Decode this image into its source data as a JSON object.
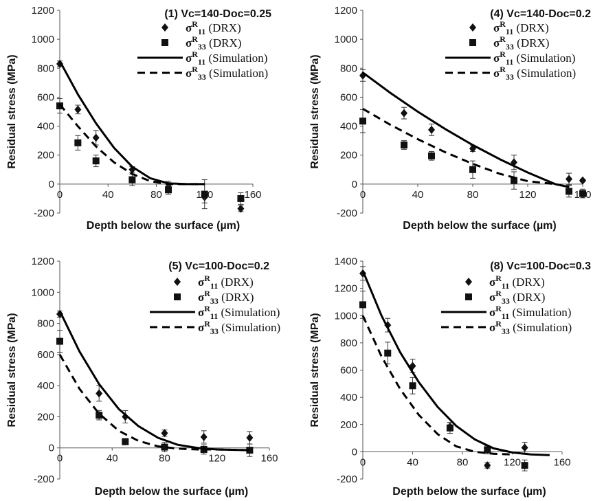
{
  "xlabel": "Depth below the surface (µm)",
  "ylabel": "Residual stress (MPa)",
  "legend": [
    {
      "sym": "σ",
      "sup": "R",
      "sub": "11",
      "rest": " (DRX)",
      "kind": "diamond"
    },
    {
      "sym": "σ",
      "sup": "R",
      "sub": "33",
      "rest": " (DRX)",
      "kind": "square"
    },
    {
      "sym": "σ",
      "sup": "R",
      "sub": "11",
      "rest": " (Simulation)",
      "kind": "solid"
    },
    {
      "sym": "σ",
      "sup": "R",
      "sub": "33",
      "rest": " (Simulation)",
      "kind": "dashed"
    }
  ],
  "chart_data": [
    {
      "type": "scatter",
      "title": "(1) Vc=140-Doc=0.25",
      "xlim": [
        0,
        160
      ],
      "xticks": [
        0,
        40,
        80,
        120,
        160
      ],
      "ylim": [
        -200,
        1200
      ],
      "yticks": [
        -200,
        0,
        200,
        400,
        600,
        800,
        1000,
        1200
      ],
      "series": [
        {
          "name": "σR11 (DRX)",
          "marker": "diamond",
          "x": [
            0,
            15,
            30,
            60,
            90,
            120,
            150
          ],
          "y": [
            830,
            515,
            320,
            100,
            -20,
            -90,
            -170
          ],
          "err": [
            20,
            30,
            50,
            20,
            40,
            40,
            20
          ]
        },
        {
          "name": "σR33 (DRX)",
          "marker": "square",
          "x": [
            0,
            15,
            30,
            60,
            90,
            120,
            150
          ],
          "y": [
            540,
            285,
            160,
            30,
            -40,
            -70,
            -100
          ],
          "err": [
            50,
            50,
            40,
            40,
            30,
            100,
            40
          ]
        },
        {
          "name": "σR11 (Simulation)",
          "style": "solid",
          "x": [
            0,
            15,
            30,
            45,
            60,
            75,
            90,
            105,
            120
          ],
          "y": [
            850,
            620,
            420,
            250,
            120,
            40,
            5,
            0,
            0
          ]
        },
        {
          "name": "σR33 (Simulation)",
          "style": "dashed",
          "x": [
            0,
            15,
            30,
            45,
            60,
            75,
            90,
            105,
            120
          ],
          "y": [
            550,
            400,
            260,
            150,
            70,
            20,
            0,
            0,
            0
          ]
        }
      ]
    },
    {
      "type": "scatter",
      "title": "(4) Vc=140-Doc=0.2",
      "xlim": [
        0,
        160
      ],
      "xticks": [
        0,
        40,
        80,
        120,
        160
      ],
      "ylim": [
        -200,
        1200
      ],
      "yticks": [
        -200,
        0,
        200,
        400,
        600,
        800,
        1000,
        1200
      ],
      "series": [
        {
          "name": "σR11 (DRX)",
          "marker": "diamond",
          "x": [
            0,
            30,
            50,
            80,
            110,
            150,
            160
          ],
          "y": [
            750,
            490,
            375,
            245,
            150,
            35,
            25
          ],
          "err": [
            40,
            40,
            40,
            20,
            50,
            40,
            10
          ]
        },
        {
          "name": "σR33 (DRX)",
          "marker": "square",
          "x": [
            0,
            30,
            50,
            80,
            110,
            150,
            160
          ],
          "y": [
            435,
            270,
            195,
            100,
            25,
            -50,
            -65
          ],
          "err": [
            80,
            30,
            30,
            60,
            60,
            40,
            30
          ]
        },
        {
          "name": "σR11 (Simulation)",
          "style": "solid",
          "x": [
            0,
            20,
            40,
            60,
            80,
            100,
            120,
            140,
            150
          ],
          "y": [
            770,
            630,
            500,
            380,
            270,
            170,
            80,
            0,
            -20
          ]
        },
        {
          "name": "σR33 (Simulation)",
          "style": "dashed",
          "x": [
            0,
            20,
            40,
            60,
            80,
            100,
            120,
            140
          ],
          "y": [
            520,
            410,
            310,
            220,
            140,
            70,
            20,
            0
          ]
        }
      ]
    },
    {
      "type": "scatter",
      "title": "(5) Vc=100-Doc=0.2",
      "xlim": [
        0,
        160
      ],
      "xticks": [
        0,
        40,
        80,
        120,
        160
      ],
      "ylim": [
        -200,
        1200
      ],
      "yticks": [
        -200,
        0,
        200,
        400,
        600,
        800,
        1000,
        1200
      ],
      "series": [
        {
          "name": "σR11 (DRX)",
          "marker": "diamond",
          "x": [
            0,
            30,
            50,
            80,
            110,
            145
          ],
          "y": [
            860,
            350,
            200,
            95,
            70,
            65
          ],
          "err": [
            20,
            50,
            40,
            20,
            40,
            40
          ]
        },
        {
          "name": "σR33 (DRX)",
          "marker": "square",
          "x": [
            0,
            30,
            50,
            80,
            110,
            145
          ],
          "y": [
            685,
            210,
            40,
            5,
            -10,
            -15
          ],
          "err": [
            70,
            30,
            20,
            30,
            30,
            40
          ]
        },
        {
          "name": "σR11 (Simulation)",
          "style": "solid",
          "x": [
            0,
            15,
            30,
            45,
            60,
            75,
            90,
            105,
            120,
            145
          ],
          "y": [
            880,
            620,
            410,
            250,
            140,
            65,
            20,
            0,
            -10,
            -15
          ]
        },
        {
          "name": "σR33 (Simulation)",
          "style": "dashed",
          "x": [
            0,
            15,
            30,
            45,
            60,
            75,
            90,
            105,
            120,
            145
          ],
          "y": [
            600,
            380,
            220,
            110,
            45,
            10,
            -5,
            -10,
            -10,
            -15
          ]
        }
      ]
    },
    {
      "type": "scatter",
      "title": "(8) Vc=100-Doc=0.3",
      "xlim": [
        0,
        160
      ],
      "xticks": [
        0,
        40,
        80,
        120,
        160
      ],
      "ylim": [
        -200,
        1400
      ],
      "yticks": [
        -200,
        0,
        200,
        400,
        600,
        800,
        1000,
        1200,
        1400
      ],
      "series": [
        {
          "name": "σR11 (DRX)",
          "marker": "diamond",
          "x": [
            0,
            20,
            40,
            70,
            100,
            130
          ],
          "y": [
            1310,
            930,
            630,
            185,
            -100,
            30
          ],
          "err": [
            50,
            50,
            50,
            30,
            20,
            40
          ]
        },
        {
          "name": "σR33 (DRX)",
          "marker": "square",
          "x": [
            0,
            20,
            40,
            70,
            100,
            130
          ],
          "y": [
            1080,
            725,
            485,
            175,
            15,
            -100
          ],
          "err": [
            100,
            80,
            60,
            40,
            30,
            40
          ]
        },
        {
          "name": "σR11 (Simulation)",
          "style": "solid",
          "x": [
            0,
            15,
            30,
            45,
            60,
            75,
            90,
            105,
            120,
            135,
            150
          ],
          "y": [
            1330,
            1000,
            730,
            510,
            330,
            190,
            90,
            25,
            -5,
            -20,
            -25
          ]
        },
        {
          "name": "σR33 (Simulation)",
          "style": "dashed",
          "x": [
            0,
            15,
            30,
            45,
            60,
            75,
            90,
            105,
            120
          ],
          "y": [
            1000,
            700,
            460,
            270,
            130,
            40,
            0,
            -15,
            -20
          ]
        }
      ]
    }
  ]
}
